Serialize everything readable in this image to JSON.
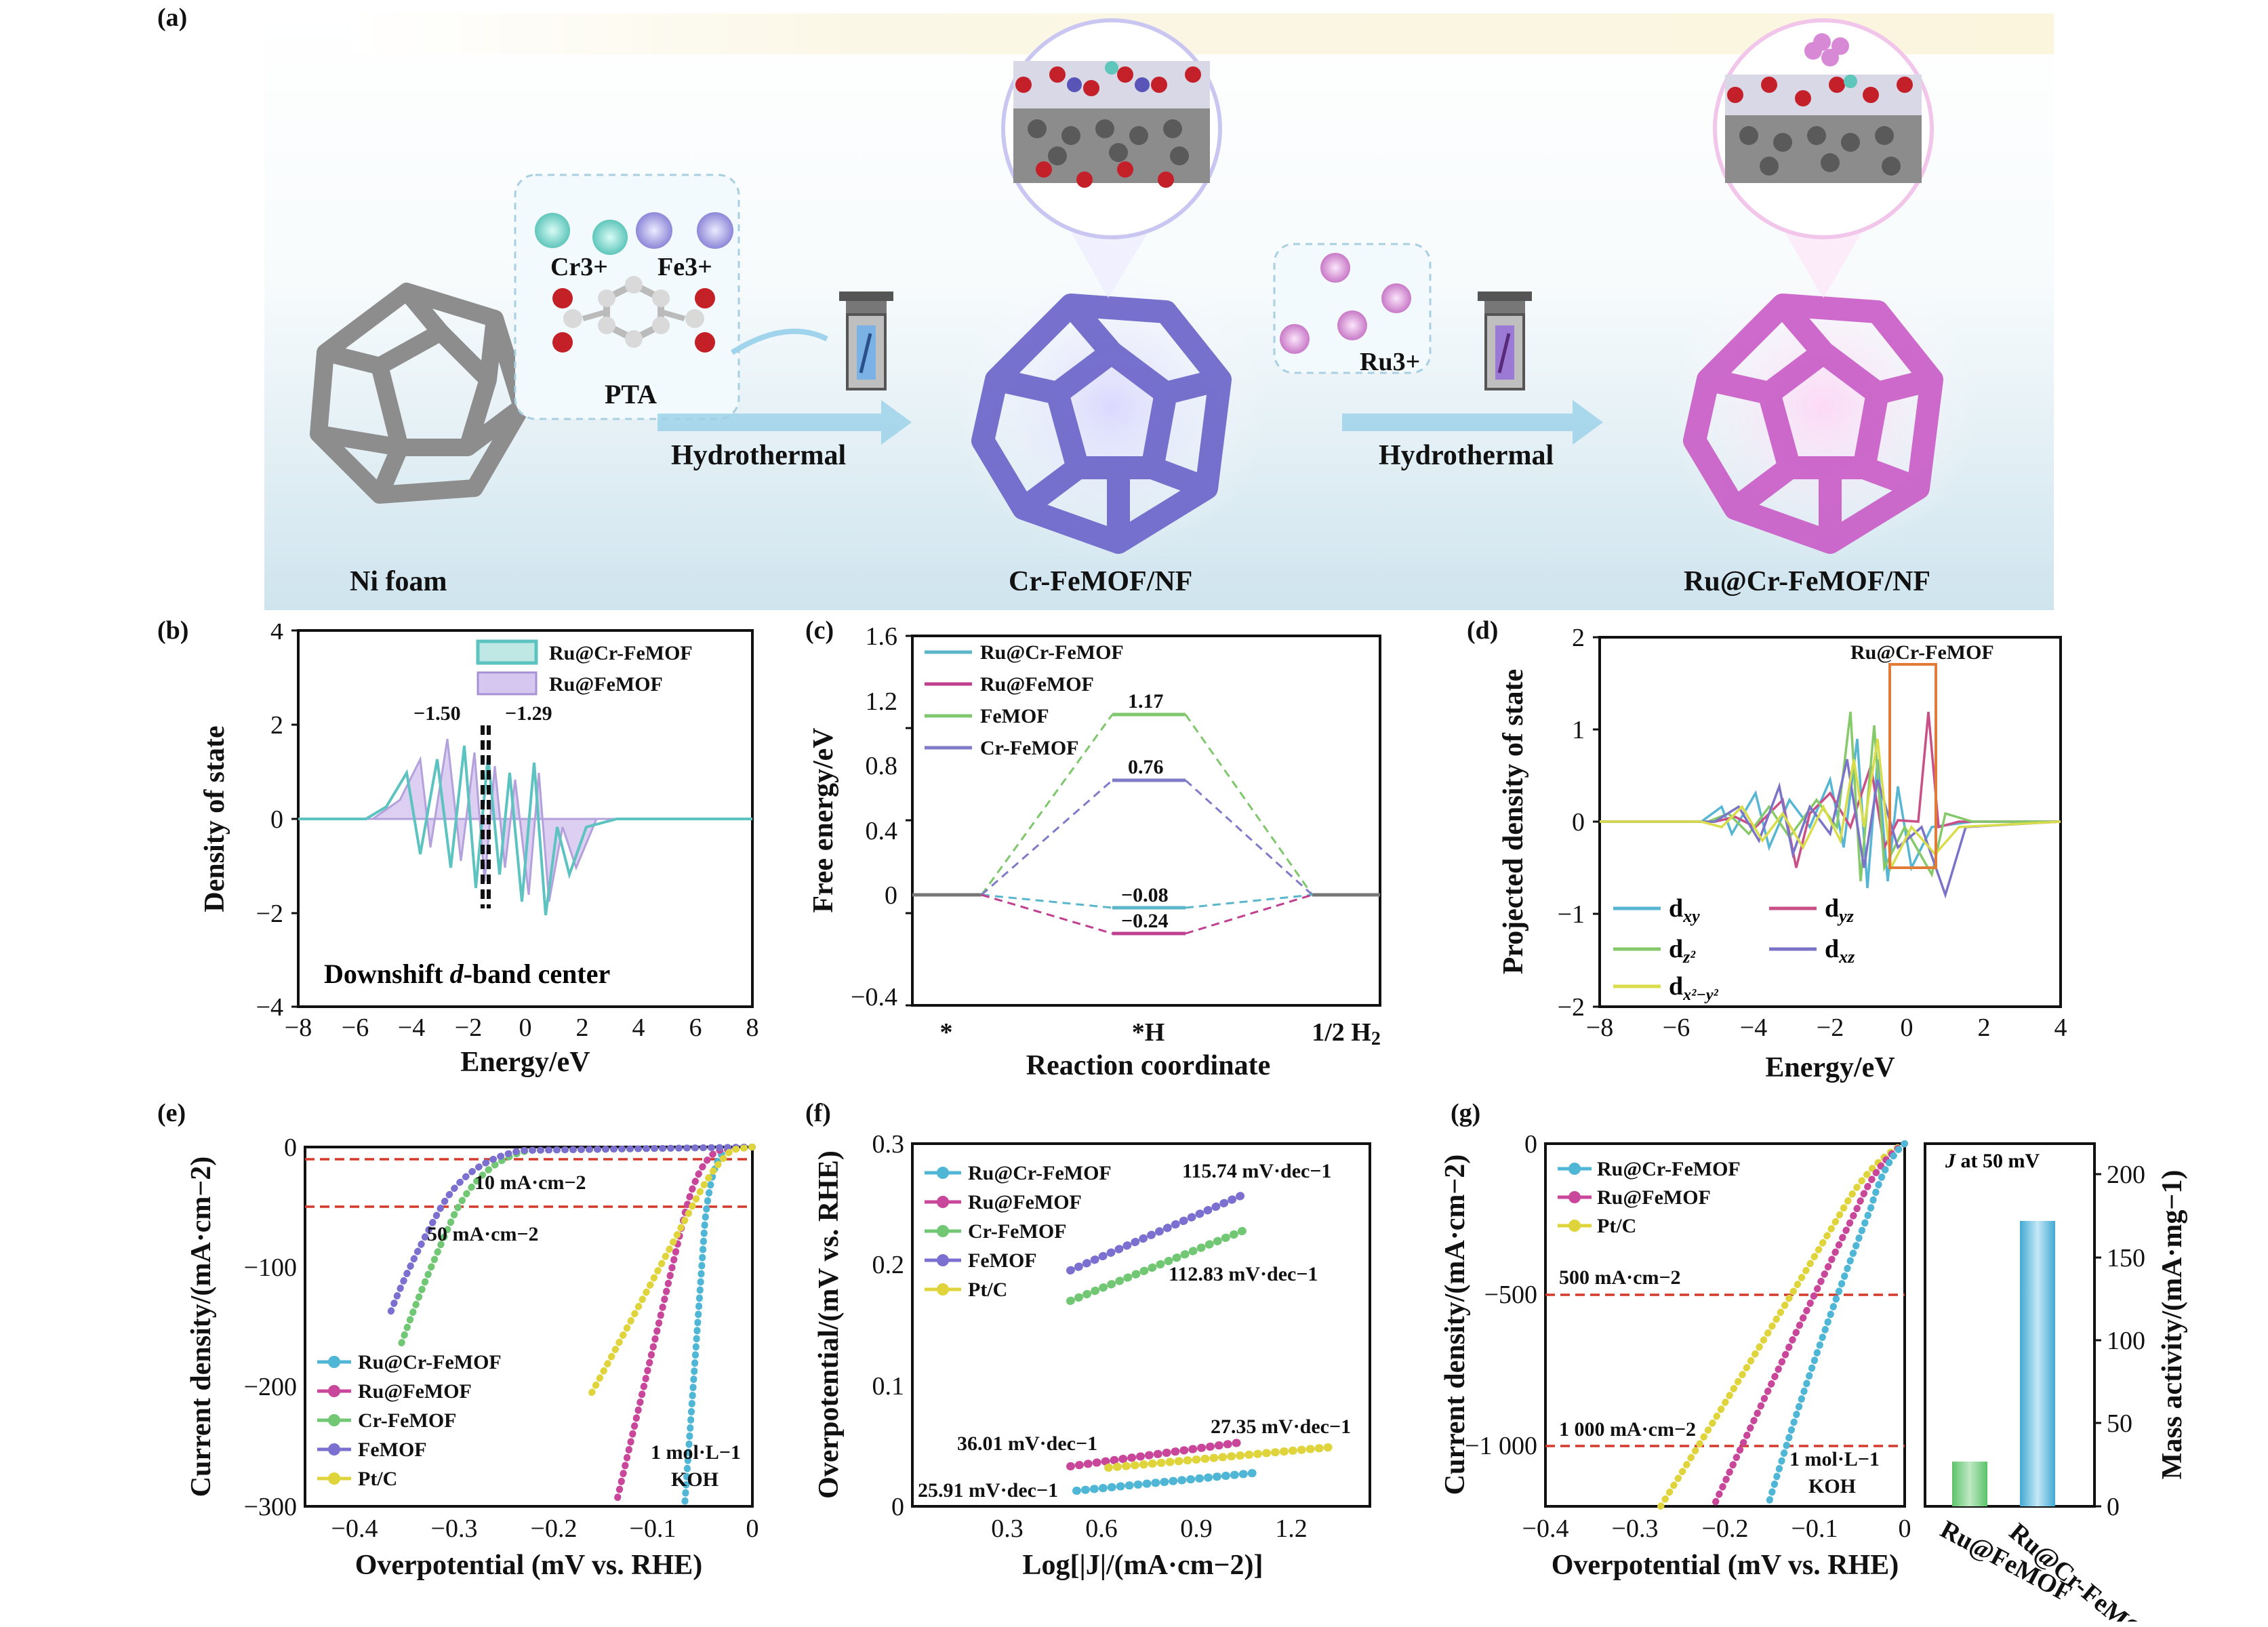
{
  "panel_letters": {
    "a": "(a)",
    "b": "(b)",
    "c": "(c)",
    "d": "(d)",
    "e": "(e)",
    "f": "(f)",
    "g": "(g)"
  },
  "scheme": {
    "cr": "Cr3+",
    "fe": "Fe3+",
    "pta": "PTA",
    "ru": "Ru3+",
    "hydrothermal_1": "Hydrothermal",
    "hydrothermal_2": "Hydrothermal",
    "ni_foam": "Ni foam",
    "cr_femof_nf": "Cr-FeMOF/NF",
    "ru_cr_femof_nf": "Ru@Cr-FeMOF/NF",
    "colors": {
      "cr": "#6fd4c8",
      "fe": "#9a96e0",
      "ru": "#d88ad6",
      "femof": "#6a63c9",
      "rumof": "#c95bc7",
      "foam": "#8a8a8a"
    }
  },
  "chart_data": [
    {
      "id": "b",
      "type": "line",
      "xlabel": "Energy/eV",
      "ylabel": "Density of state",
      "xlim": [
        -8,
        8
      ],
      "ylim": [
        -4,
        4
      ],
      "xticks": [
        "−8",
        "−6",
        "−4",
        "−2",
        "0",
        "2",
        "4",
        "6",
        "8"
      ],
      "yticks": [
        "4",
        "2",
        "0",
        "−2",
        "−4"
      ],
      "legend": [
        "Ru@Cr-FeMOF",
        "Ru@FeMOF"
      ],
      "annotations": [
        "−1.50",
        "−1.29",
        "Downshift d-band center"
      ],
      "series": [
        {
          "name": "Ru@Cr-FeMOF",
          "color": "#5cc3c0"
        },
        {
          "name": "Ru@FeMOF",
          "color": "#b7a3de"
        }
      ]
    },
    {
      "id": "c",
      "type": "line",
      "xlabel": "Reaction coordinate",
      "ylabel": "Free energy/eV",
      "ylim": [
        -0.4,
        1.6
      ],
      "categories": [
        "*",
        "*H",
        "1/2 H2"
      ],
      "yticks": [
        "1.6",
        "1.2",
        "0.8",
        "0.4",
        "0",
        "−0.4"
      ],
      "series": [
        {
          "name": "Ru@Cr-FeMOF",
          "color": "#5ab6c8",
          "values": [
            0,
            -0.08,
            0
          ]
        },
        {
          "name": "Ru@FeMOF",
          "color": "#c13f8f",
          "values": [
            0,
            -0.24,
            0
          ]
        },
        {
          "name": "FeMOF",
          "color": "#7fc76c",
          "values": [
            0,
            1.17,
            0
          ]
        },
        {
          "name": "Cr-FeMOF",
          "color": "#7f7bc8",
          "values": [
            0,
            0.76,
            0
          ]
        }
      ],
      "value_labels": [
        "1.17",
        "0.76",
        "−0.08",
        "−0.24"
      ]
    },
    {
      "id": "d",
      "type": "line",
      "xlabel": "Energy/eV",
      "ylabel": "Projected density of state",
      "xlim": [
        -8,
        4
      ],
      "ylim": [
        -2,
        2
      ],
      "xticks": [
        "−8",
        "−6",
        "−4",
        "−2",
        "0",
        "2",
        "4"
      ],
      "yticks": [
        "2",
        "1",
        "0",
        "−1",
        "−2"
      ],
      "inset_title": "Ru@Cr-FeMOF",
      "series": [
        {
          "name": "dxy",
          "color": "#57b6d3"
        },
        {
          "name": "dyz",
          "color": "#c94f87"
        },
        {
          "name": "dz2",
          "color": "#86c96b"
        },
        {
          "name": "dxz",
          "color": "#7b73c8"
        },
        {
          "name": "dx2−y2",
          "color": "#d9dd4a"
        }
      ]
    },
    {
      "id": "e",
      "type": "line",
      "xlabel": "Overpotential (mV vs. RHE)",
      "ylabel": "Current density/(mA·cm−2)",
      "xlim": [
        -0.45,
        0
      ],
      "ylim": [
        -300,
        0
      ],
      "xticks": [
        "−0.4",
        "−0.3",
        "−0.2",
        "−0.1",
        "0"
      ],
      "yticks": [
        "0",
        "−100",
        "−200",
        "−300"
      ],
      "refs": [
        {
          "label": "10 mA·cm−2",
          "y": -10
        },
        {
          "label": "50 mA·cm−2",
          "y": -50
        }
      ],
      "note": "1 mol·L−1 KOH",
      "series": [
        {
          "name": "Ru@Cr-FeMOF",
          "color": "#4fb6d6",
          "onset": -0.03,
          "end_x": -0.115,
          "end_y": -300
        },
        {
          "name": "Ru@FeMOF",
          "color": "#c9479a",
          "onset": -0.05,
          "end_x": -0.19,
          "end_y": -295
        },
        {
          "name": "Cr-FeMOF",
          "color": "#72c774",
          "onset": -0.24,
          "end_x": -0.36,
          "end_y": -168
        },
        {
          "name": "FeMOF",
          "color": "#7b6fd0",
          "onset": -0.23,
          "end_x": -0.37,
          "end_y": -140
        },
        {
          "name": "Pt/C",
          "color": "#e0d43c",
          "onset": -0.02,
          "end_x": -0.165,
          "end_y": -208
        }
      ]
    },
    {
      "id": "f",
      "type": "line",
      "xlabel": "Log[|J|/(mA·cm−2)]",
      "ylabel": "Overpotential/(mV vs. RHE)",
      "xlim": [
        0,
        1.45
      ],
      "ylim": [
        0,
        0.3
      ],
      "xticks": [
        "0.3",
        "0.6",
        "0.9",
        "1.2"
      ],
      "yticks": [
        "0.3",
        "0.2",
        "0.1",
        "0"
      ],
      "series": [
        {
          "name": "Ru@Cr-FeMOF",
          "color": "#4fb6d6",
          "slope_label": "25.91 mV·dec−1",
          "x": [
            0.52,
            1.1
          ],
          "y": [
            0.013,
            0.028
          ]
        },
        {
          "name": "Ru@FeMOF",
          "color": "#c9479a",
          "slope_label": "36.01 mV·dec−1",
          "x": [
            0.5,
            1.05
          ],
          "y": [
            0.033,
            0.053
          ]
        },
        {
          "name": "Cr-FeMOF",
          "color": "#72c774",
          "slope_label": "112.83 mV·dec−1",
          "x": [
            0.5,
            1.05
          ],
          "y": [
            0.17,
            0.228
          ]
        },
        {
          "name": "FeMOF",
          "color": "#7b6fd0",
          "slope_label": "115.74 mV·dec−1",
          "x": [
            0.5,
            1.05
          ],
          "y": [
            0.195,
            0.258
          ]
        },
        {
          "name": "Pt/C",
          "color": "#e0d43c",
          "slope_label": "27.35 mV·dec−1",
          "x": [
            0.62,
            1.32
          ],
          "y": [
            0.032,
            0.049
          ]
        }
      ]
    },
    {
      "id": "g1",
      "type": "line",
      "xlabel": "Overpotential (mV vs. RHE)",
      "ylabel": "Current density/(mA·cm−2)",
      "xlim": [
        -0.4,
        0
      ],
      "ylim": [
        -1200,
        0
      ],
      "xticks": [
        "−0.4",
        "−0.3",
        "−0.2",
        "−0.1",
        "0"
      ],
      "yticks": [
        "0",
        "−500",
        "−1 000"
      ],
      "refs": [
        {
          "label": "500 mA·cm−2",
          "y": -500
        },
        {
          "label": "1 000 mA·cm−2",
          "y": -1000
        }
      ],
      "note": "1 mol·L−1 KOH",
      "series": [
        {
          "name": "Ru@Cr-FeMOF",
          "color": "#4fb6d6",
          "end_x": -0.165
        },
        {
          "name": "Ru@FeMOF",
          "color": "#c9479a",
          "end_x": -0.225
        },
        {
          "name": "Pt/C",
          "color": "#e0d43c",
          "end_x": -0.27
        }
      ]
    },
    {
      "id": "g2",
      "type": "bar",
      "title": "J at 50 mV",
      "ylabel": "Mass activity/(mA·mg−1)",
      "categories": [
        "Ru@FeMOF",
        "Ru@Cr-FeMOF"
      ],
      "values": [
        27,
        172
      ],
      "ylim": [
        0,
        210
      ],
      "yticks": [
        "200",
        "150",
        "100",
        "50",
        "0"
      ],
      "colors": [
        "#72c774",
        "#4fb6d6"
      ]
    }
  ],
  "labels": {
    "b": {
      "xlabel": "Energy/eV",
      "ylabel": "Density of state",
      "leg1": "Ru@Cr-FeMOF",
      "leg2": "Ru@FeMOF",
      "a1": "−1.50",
      "a2": "−1.29",
      "a3a": "Downshift ",
      "a3b": "d",
      "a3c": "-band center"
    },
    "c": {
      "xlabel": "Reaction coordinate",
      "ylabel": "Free energy/eV",
      "l1": "Ru@Cr-FeMOF",
      "l2": "Ru@FeMOF",
      "l3": "FeMOF",
      "l4": "Cr-FeMOF",
      "v1": "1.17",
      "v2": "0.76",
      "v3": "−0.08",
      "v4": "−0.24",
      "c1": "*",
      "c2": "*H",
      "c3": "1/2 H",
      "c3sub": "2"
    },
    "d": {
      "xlabel": "Energy/eV",
      "ylabel": "Projected density of state",
      "inset": "Ru@Cr-FeMOF"
    },
    "e": {
      "xlabel": "Overpotential (mV vs. RHE)",
      "ylabel": "Current density/(mA·cm−2)",
      "r1": "10 mA·cm−2",
      "r2": "50 mA·cm−2",
      "note1": "1 mol·L−1",
      "note2": "KOH"
    },
    "f": {
      "xlabel": "Log[|J|/(mA·cm−2)]",
      "ylabel": "Overpotential/(mV vs. RHE)"
    },
    "g": {
      "xlabel": "Overpotential (mV vs. RHE)",
      "ylabel": "Current density/(mA·cm−2)",
      "r1": "500 mA·cm−2",
      "r2": "1 000 mA·cm−2",
      "note1": "1 mol·L−1",
      "note2": "KOH",
      "bar_title": "J at 50 mV",
      "bar_ylabel": "Mass activity/(mA·mg−1)"
    }
  }
}
